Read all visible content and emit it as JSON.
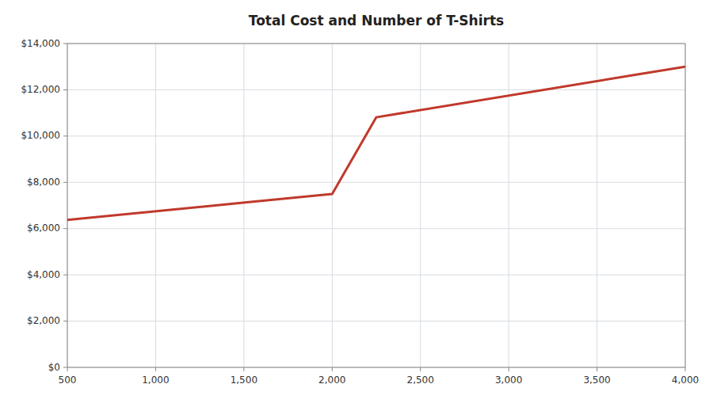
{
  "chart_data": {
    "type": "line",
    "title": "Total Cost and Number of T-Shirts",
    "x": [
      500,
      2000,
      2250,
      3750,
      4000
    ],
    "values": [
      6375,
      7500,
      10813,
      12688,
      13000
    ],
    "color": "#c0392b",
    "xlim": [
      500,
      4000
    ],
    "ylim": [
      0,
      14000
    ],
    "xticks": [
      500,
      {
        "value": 1000,
        "label": "1,000"
      },
      {
        "value": 1500,
        "label": "1,500"
      },
      {
        "value": 2000,
        "label": "2,000"
      },
      {
        "value": 2500,
        "label": "2,500"
      },
      {
        "value": 3000,
        "label": "3,000"
      },
      {
        "value": 3500,
        "label": "3,500"
      },
      {
        "value": 4000,
        "label": "4,000"
      }
    ],
    "yticks": [
      {
        "value": 0,
        "label": "$0"
      },
      {
        "value": 2000,
        "label": "$2,000"
      },
      {
        "value": 4000,
        "label": "$4,000"
      },
      {
        "value": 6000,
        "label": "$6,000"
      },
      {
        "value": 8000,
        "label": "$8,000"
      },
      {
        "value": 10000,
        "label": "$10,000"
      },
      {
        "value": 12000,
        "label": "$12,000"
      },
      {
        "value": 14000,
        "label": "$14,000"
      }
    ],
    "grid": true
  }
}
